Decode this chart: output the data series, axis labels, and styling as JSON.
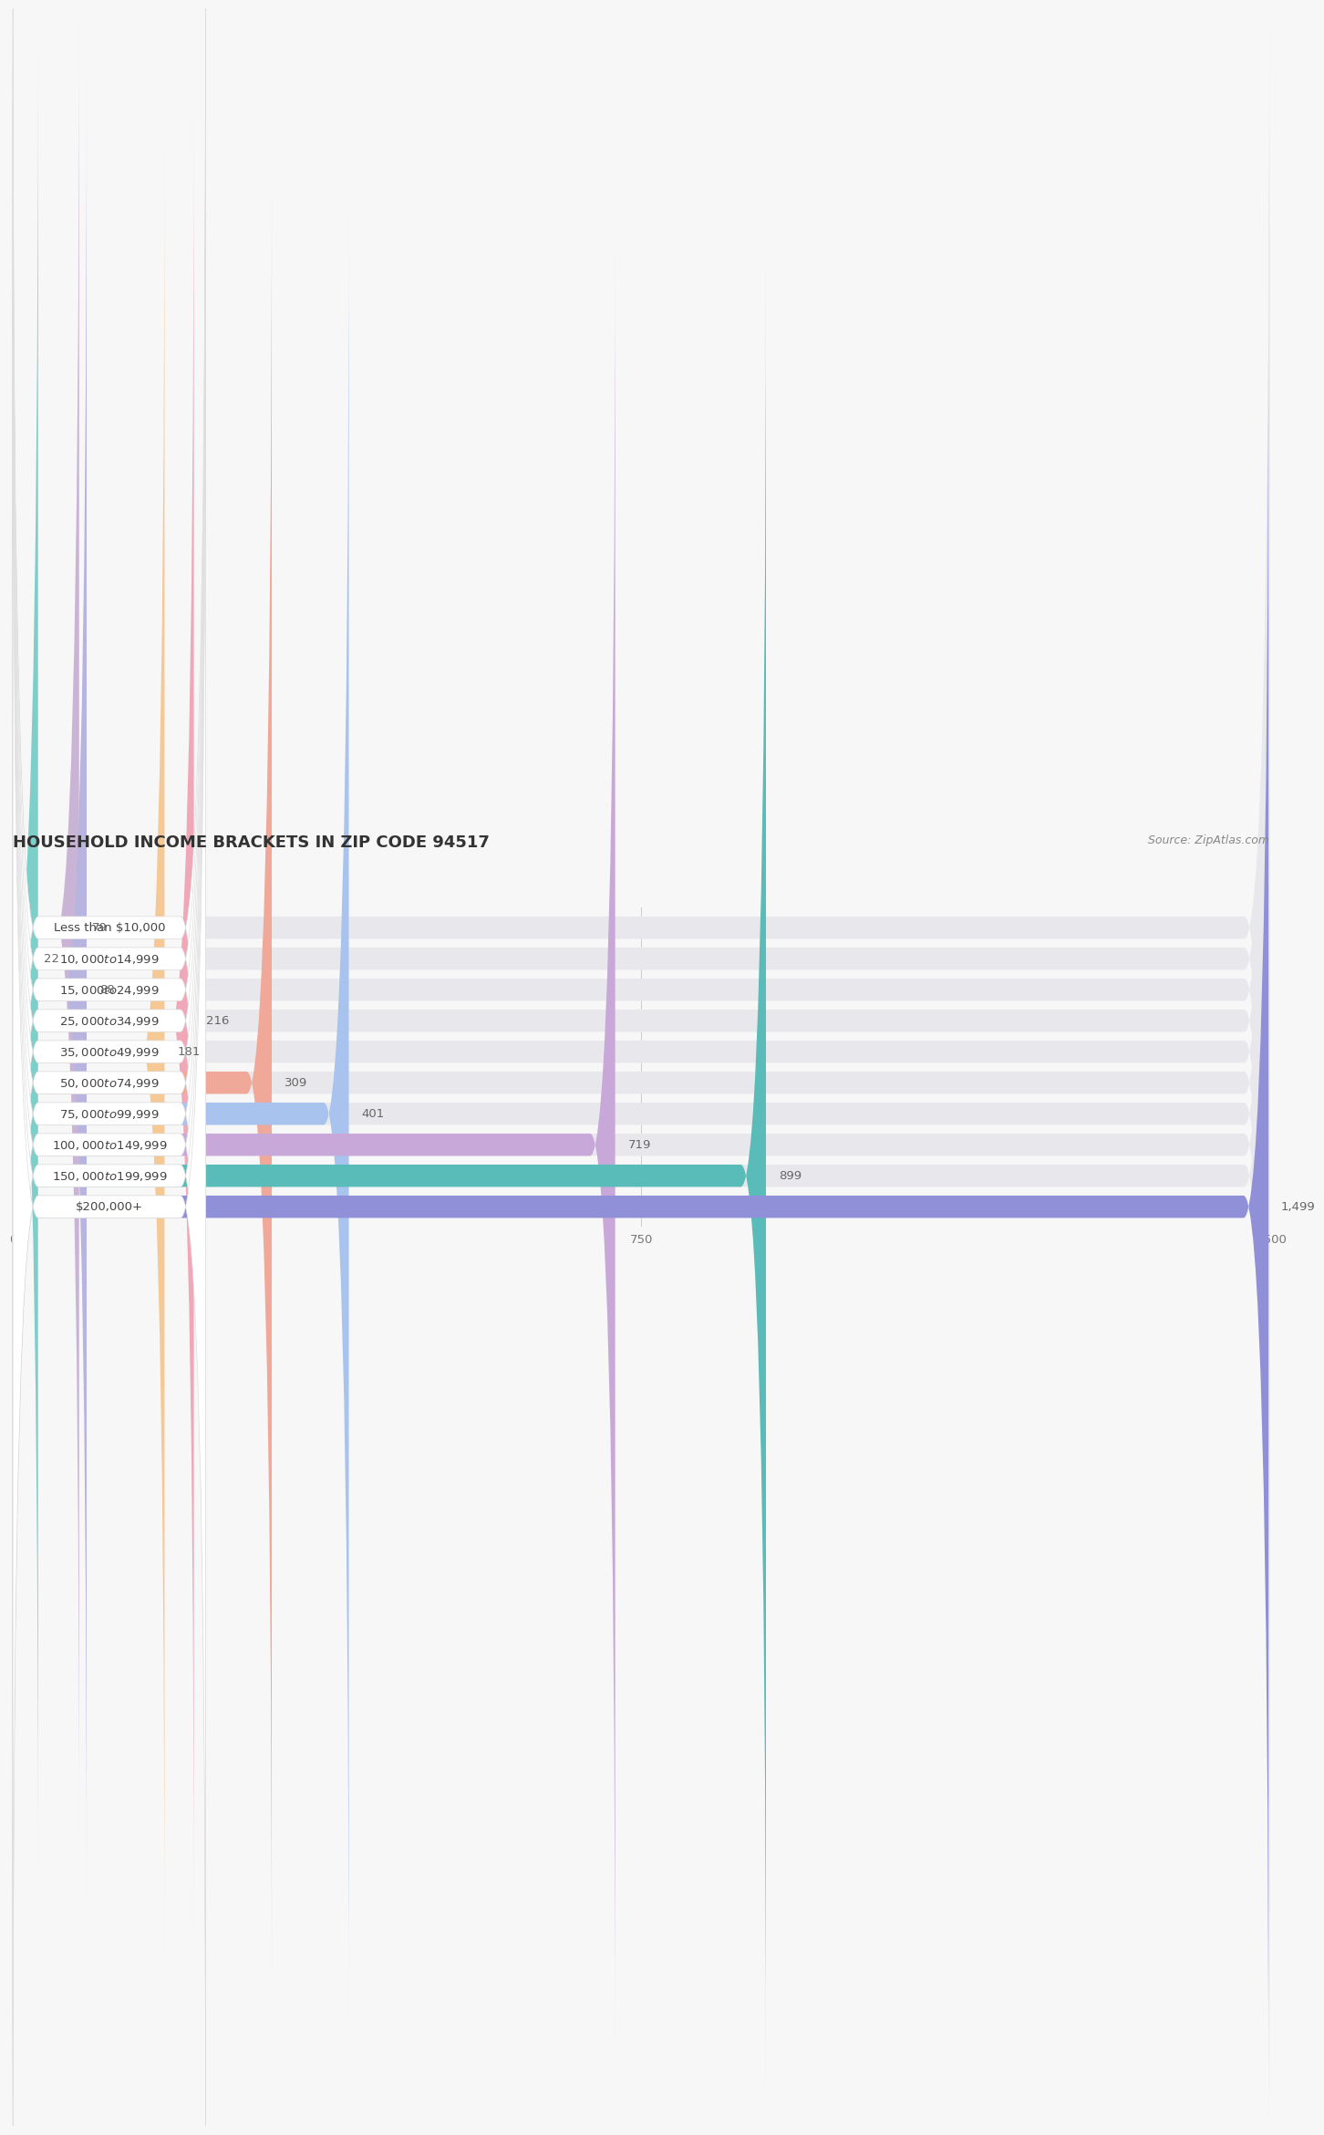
{
  "title": "HOUSEHOLD INCOME BRACKETS IN ZIP CODE 94517",
  "source": "Source: ZipAtlas.com",
  "categories": [
    "Less than $10,000",
    "$10,000 to $14,999",
    "$15,000 to $24,999",
    "$25,000 to $34,999",
    "$35,000 to $49,999",
    "$50,000 to $74,999",
    "$75,000 to $99,999",
    "$100,000 to $149,999",
    "$150,000 to $199,999",
    "$200,000+"
  ],
  "values": [
    79,
    22,
    88,
    216,
    181,
    309,
    401,
    719,
    899,
    1499
  ],
  "bar_colors": [
    "#c9b4d6",
    "#7ececa",
    "#b8b4e0",
    "#f0a8b8",
    "#f5c894",
    "#f0a898",
    "#a8c4ee",
    "#c8a8d8",
    "#5abcb8",
    "#9090d8"
  ],
  "background_color": "#f7f7f7",
  "bar_background_color": "#e8e8ec",
  "label_box_color": "#ffffff",
  "xlim": [
    0,
    1500
  ],
  "xticks": [
    0,
    750,
    1500
  ],
  "title_fontsize": 13,
  "label_fontsize": 9.5,
  "value_fontsize": 9.5,
  "source_fontsize": 9
}
